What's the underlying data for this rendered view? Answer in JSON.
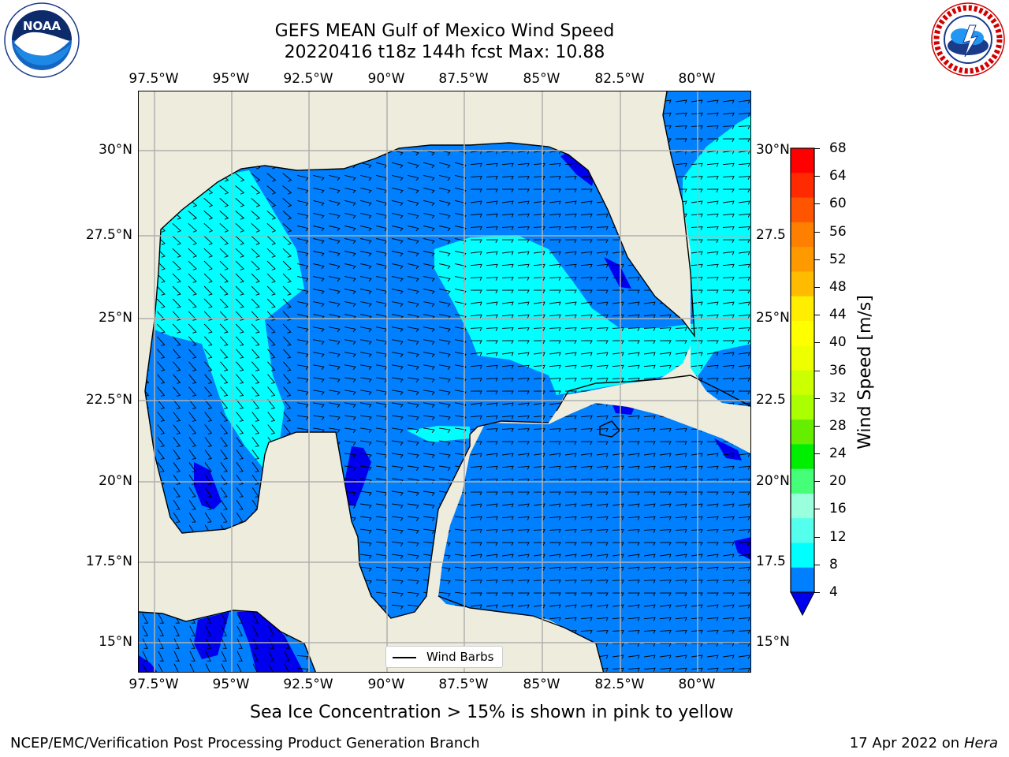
{
  "title": {
    "line1": "GEFS MEAN Gulf of Mexico Wind Speed",
    "line2": "20220416 t18z 144h fcst   Max: 10.88"
  },
  "axes": {
    "lon_labels": [
      "97.5°W",
      "95°W",
      "92.5°W",
      "90°W",
      "87.5°W",
      "85°W",
      "82.5°W",
      "80°W"
    ],
    "lat_labels_left": [
      "30°N",
      "27.5°N",
      "25°N",
      "22.5°N",
      "20°N",
      "17.5°N",
      "15°N"
    ],
    "lat_labels_right": [
      "30°N",
      "27.5",
      "25°N",
      "22.5",
      "20°N",
      "17.5",
      "15°N"
    ]
  },
  "colorbar": {
    "label": "Wind Speed [m/s]",
    "ticks": [
      "68",
      "64",
      "60",
      "56",
      "52",
      "48",
      "44",
      "40",
      "36",
      "32",
      "28",
      "24",
      "20",
      "16",
      "12",
      "8",
      "4"
    ],
    "colors_top_to_bottom": [
      "#ff0000",
      "#ff2a00",
      "#ff5500",
      "#ff7f00",
      "#ff9900",
      "#ffbb00",
      "#ffee00",
      "#ffff00",
      "#eeff00",
      "#ccff00",
      "#aaff00",
      "#66ee00",
      "#00ee00",
      "#44ff77",
      "#99ffdd",
      "#55ffee",
      "#00ffff",
      "#0080ff"
    ],
    "under_color": "#0000ee"
  },
  "legend": {
    "label": "Wind Barbs"
  },
  "note": "Sea Ice Concentration > 15% is shown in pink to yellow",
  "footer": {
    "left": "NCEP/EMC/Verification Post Processing Product Generation Branch",
    "right_date": "17 Apr 2022 on ",
    "right_machine": "Hera"
  },
  "logos": {
    "left": "NOAA",
    "right": "NATIONAL WEATHER SERVICE"
  },
  "colors": {
    "land": "#eeecdc",
    "speed_4_8": "#0080ff",
    "speed_8_12": "#00ffff",
    "speed_under_4": "#0000ee",
    "grid": "#b0b0b0"
  }
}
